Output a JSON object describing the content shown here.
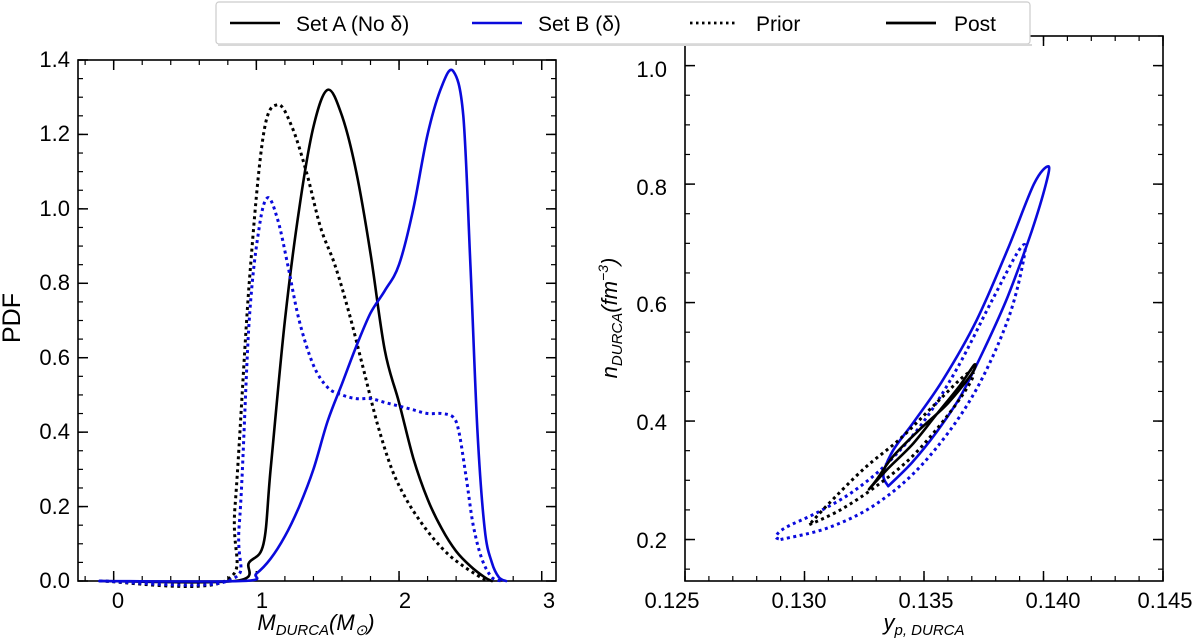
{
  "legend": {
    "entries": [
      {
        "label": "Set A (No δ)",
        "style": "solid",
        "color": "#000000"
      },
      {
        "label": "Set B (δ)",
        "style": "solid",
        "color": "#0a0adc"
      },
      {
        "label": "Prior",
        "style": "dotted",
        "color": "#000000"
      },
      {
        "label": "Post",
        "style": "solid",
        "color": "#000000"
      }
    ]
  },
  "colors": {
    "set_a": "#000000",
    "set_b": "#0a0adc"
  },
  "chart_data": [
    {
      "type": "line",
      "title": "",
      "xlabel": "M_DURCA(M_⊙)",
      "ylabel": "PDF",
      "xlim": [
        -0.25,
        3.1
      ],
      "ylim": [
        0.0,
        1.4
      ],
      "xticks": [
        "0",
        "1",
        "2",
        "3"
      ],
      "yticks": [
        "0.0",
        "0.2",
        "0.4",
        "0.6",
        "0.8",
        "1.0",
        "1.2",
        "1.4"
      ],
      "series": [
        {
          "name": "Set A (No δ) Post",
          "color": "#000000",
          "style": "solid",
          "x": [
            -0.1,
            0.85,
            0.95,
            1.05,
            1.1,
            1.2,
            1.3,
            1.4,
            1.5,
            1.6,
            1.7,
            1.8,
            1.9,
            2.0,
            2.1,
            2.2,
            2.3,
            2.4,
            2.5,
            2.6,
            2.65
          ],
          "y": [
            0.0,
            0.0,
            0.05,
            0.1,
            0.3,
            0.7,
            1.0,
            1.22,
            1.32,
            1.25,
            1.1,
            0.88,
            0.62,
            0.48,
            0.33,
            0.22,
            0.14,
            0.08,
            0.04,
            0.01,
            0.0
          ]
        },
        {
          "name": "Set A (No δ) Prior",
          "color": "#000000",
          "style": "dotted",
          "x": [
            -0.1,
            0.78,
            0.85,
            0.95,
            1.05,
            1.15,
            1.25,
            1.35,
            1.45,
            1.55,
            1.65,
            1.75,
            1.85,
            1.95,
            2.05,
            2.15,
            2.25,
            2.35,
            2.45,
            2.55,
            2.62
          ],
          "y": [
            0.0,
            0.0,
            0.2,
            0.8,
            1.2,
            1.28,
            1.22,
            1.1,
            0.95,
            0.85,
            0.72,
            0.57,
            0.42,
            0.3,
            0.22,
            0.16,
            0.11,
            0.07,
            0.04,
            0.015,
            0.0
          ]
        },
        {
          "name": "Set B (δ) Post",
          "color": "#0a0adc",
          "style": "solid",
          "x": [
            -0.1,
            0.9,
            1.0,
            1.1,
            1.2,
            1.3,
            1.4,
            1.5,
            1.6,
            1.7,
            1.8,
            1.9,
            2.0,
            2.1,
            2.2,
            2.3,
            2.38,
            2.45,
            2.5,
            2.55,
            2.6,
            2.65,
            2.7,
            2.75
          ],
          "y": [
            0.0,
            0.0,
            0.02,
            0.06,
            0.12,
            0.2,
            0.3,
            0.43,
            0.53,
            0.63,
            0.72,
            0.78,
            0.85,
            1.0,
            1.2,
            1.33,
            1.37,
            1.25,
            0.85,
            0.4,
            0.14,
            0.05,
            0.01,
            0.0
          ]
        },
        {
          "name": "Set B (δ) Prior",
          "color": "#0a0adc",
          "style": "dotted",
          "x": [
            -0.1,
            0.8,
            0.88,
            0.95,
            1.02,
            1.08,
            1.15,
            1.22,
            1.3,
            1.4,
            1.5,
            1.6,
            1.7,
            1.8,
            1.9,
            2.0,
            2.1,
            2.2,
            2.3,
            2.38,
            2.42,
            2.47,
            2.52,
            2.58,
            2.65,
            2.72
          ],
          "y": [
            0.0,
            0.0,
            0.15,
            0.7,
            0.95,
            1.03,
            0.97,
            0.85,
            0.7,
            0.58,
            0.52,
            0.5,
            0.49,
            0.49,
            0.48,
            0.47,
            0.46,
            0.45,
            0.45,
            0.44,
            0.4,
            0.28,
            0.15,
            0.06,
            0.01,
            0.0
          ]
        }
      ]
    },
    {
      "type": "contour",
      "title": "",
      "xlabel": "y_p,DURCA",
      "ylabel": "n_DURCA(fm^-3)",
      "xlim": [
        0.125,
        0.145
      ],
      "ylim": [
        0.13,
        1.05
      ],
      "xticks": [
        "0.125",
        "0.130",
        "0.135",
        "0.140",
        "0.145"
      ],
      "yticks": [
        "0.2",
        "0.4",
        "0.6",
        "0.8",
        "1.0"
      ],
      "series": [
        {
          "name": "Set B (δ) Post",
          "color": "#0a0adc",
          "style": "solid",
          "x": [
            0.1335,
            0.1345,
            0.1355,
            0.1365,
            0.1375,
            0.1385,
            0.1395,
            0.1401,
            0.1402,
            0.1396,
            0.1385,
            0.1372,
            0.1358,
            0.1346,
            0.1337,
            0.1333,
            0.1335
          ],
          "y": [
            0.29,
            0.33,
            0.38,
            0.44,
            0.52,
            0.61,
            0.72,
            0.8,
            0.83,
            0.8,
            0.69,
            0.57,
            0.47,
            0.4,
            0.35,
            0.31,
            0.29
          ]
        },
        {
          "name": "Set B (δ) Prior",
          "color": "#0a0adc",
          "style": "dotted",
          "x": [
            0.129,
            0.131,
            0.133,
            0.135,
            0.137,
            0.1385,
            0.1392,
            0.139,
            0.1378,
            0.1364,
            0.135,
            0.1335,
            0.132,
            0.1305,
            0.1292,
            0.1288,
            0.129
          ],
          "y": [
            0.2,
            0.22,
            0.26,
            0.33,
            0.44,
            0.57,
            0.68,
            0.69,
            0.6,
            0.49,
            0.4,
            0.33,
            0.28,
            0.245,
            0.22,
            0.205,
            0.2
          ]
        },
        {
          "name": "Set A (No δ) Post",
          "color": "#000000",
          "style": "solid",
          "x": [
            0.1327,
            0.1335,
            0.1345,
            0.1355,
            0.1365,
            0.1371,
            0.137,
            0.136,
            0.1348,
            0.1337,
            0.133,
            0.1327
          ],
          "y": [
            0.285,
            0.32,
            0.36,
            0.41,
            0.46,
            0.495,
            0.48,
            0.43,
            0.385,
            0.34,
            0.3,
            0.285
          ]
        },
        {
          "name": "Set A (No δ) Prior",
          "color": "#000000",
          "style": "dotted",
          "x": [
            0.1302,
            0.1315,
            0.133,
            0.1345,
            0.136,
            0.137,
            0.1368,
            0.1355,
            0.134,
            0.1325,
            0.131,
            0.1302
          ],
          "y": [
            0.225,
            0.25,
            0.29,
            0.34,
            0.41,
            0.47,
            0.48,
            0.43,
            0.37,
            0.32,
            0.26,
            0.225
          ]
        }
      ]
    }
  ]
}
